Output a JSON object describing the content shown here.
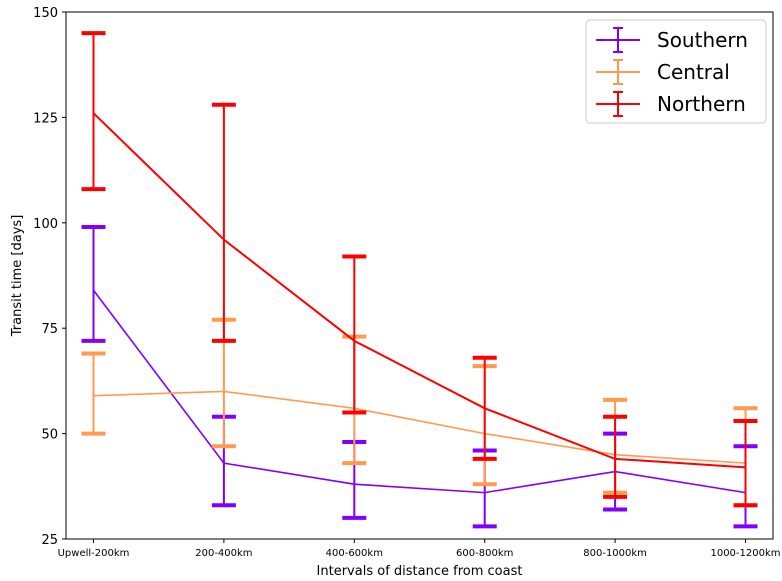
{
  "chart_data": {
    "type": "line",
    "xlabel": "Intervals of distance from coast",
    "ylabel": "Transit time [days]",
    "categories": [
      "Upwell-200km",
      "200-400km",
      "400-600km",
      "600-800km",
      "800-1000km",
      "1000-1200km"
    ],
    "ylim": [
      25,
      150
    ],
    "yticks": [
      25,
      50,
      75,
      100,
      125,
      150
    ],
    "grid": false,
    "legend_position": "top-right",
    "series": [
      {
        "name": "Southern",
        "color": "#7f00ff",
        "values": [
          84,
          43,
          38,
          36,
          41,
          36
        ],
        "err_low": [
          72,
          33,
          30,
          28,
          32,
          28
        ],
        "err_high": [
          99,
          54,
          48,
          46,
          50,
          47
        ]
      },
      {
        "name": "Central",
        "color": "#ff9a4f",
        "values": [
          59,
          60,
          56,
          50,
          45,
          43
        ],
        "err_low": [
          50,
          47,
          43,
          38,
          36,
          33
        ],
        "err_high": [
          69,
          77,
          73,
          66,
          58,
          56
        ]
      },
      {
        "name": "Northern",
        "color": "#ff0000",
        "values": [
          126,
          96,
          72,
          56,
          44,
          42
        ],
        "err_low": [
          108,
          72,
          55,
          44,
          35,
          33
        ],
        "err_high": [
          145,
          128,
          92,
          68,
          54,
          53
        ]
      }
    ]
  }
}
